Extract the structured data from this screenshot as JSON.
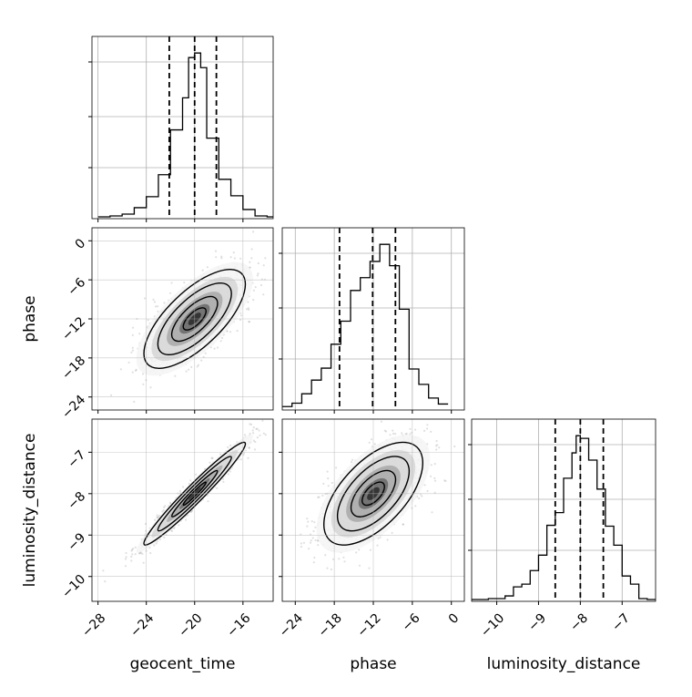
{
  "chart_data": {
    "type": "corner",
    "parameters": [
      "geocent_time",
      "phase",
      "luminosity_distance"
    ],
    "axis_labels": {
      "bottom": [
        "geocent_time",
        "phase",
        "luminosity_distance"
      ],
      "left": [
        "phase",
        "luminosity_distance"
      ]
    },
    "ranges": {
      "geocent_time": [
        -28.5,
        -13.5
      ],
      "phase": [
        -26.0,
        2.0
      ],
      "luminosity_distance": [
        -10.6,
        -6.2
      ]
    },
    "ticks": {
      "geocent_time": {
        "values": [
          -28,
          -24,
          -20,
          -16
        ],
        "labels": [
          "−28",
          "−24",
          "−20",
          "−16"
        ]
      },
      "phase": {
        "values": [
          -24,
          -18,
          -12,
          -6,
          0
        ],
        "labels": [
          "−24",
          "−18",
          "−12",
          "−6",
          "0"
        ]
      },
      "luminosity_distance": {
        "values": [
          -10,
          -9,
          -8,
          -7
        ],
        "labels": [
          "−10",
          "−9",
          "−8",
          "−7"
        ]
      }
    },
    "quantiles": {
      "geocent_time": [
        -22.1,
        -20.0,
        -18.2
      ],
      "phase": [
        -17.2,
        -12.1,
        -8.6
      ],
      "luminosity_distance": [
        -8.6,
        -8.0,
        -7.45
      ]
    },
    "histograms": {
      "geocent_time": {
        "bin_edges": [
          -28.0,
          -27.0,
          -26.0,
          -25.0,
          -24.0,
          -23.0,
          -22.0,
          -21.0,
          -20.5,
          -20.0,
          -19.5,
          -19.0,
          -18.0,
          -17.0,
          -16.0,
          -15.0,
          -14.0,
          -13.5
        ],
        "counts": [
          2,
          3,
          5,
          12,
          24,
          48,
          97,
          132,
          176,
          181,
          165,
          88,
          43,
          25,
          10,
          3,
          2
        ]
      },
      "phase": {
        "bin_edges": [
          -26.0,
          -24.5,
          -23.0,
          -21.5,
          -20.0,
          -18.5,
          -17.0,
          -15.5,
          -14.0,
          -12.5,
          -11.0,
          -9.5,
          -8.0,
          -6.5,
          -5.0,
          -3.5,
          -2.0,
          -0.5
        ],
        "counts": [
          4,
          8,
          19,
          35,
          49,
          77,
          104,
          140,
          155,
          174,
          194,
          169,
          118,
          48,
          30,
          14,
          7
        ]
      },
      "luminosity_distance": {
        "bin_edges": [
          -10.6,
          -10.2,
          -9.8,
          -9.6,
          -9.4,
          -9.2,
          -9.0,
          -8.8,
          -8.6,
          -8.4,
          -8.2,
          -8.1,
          -8.0,
          -7.8,
          -7.6,
          -7.4,
          -7.2,
          -7.0,
          -6.8,
          -6.6,
          -6.4,
          -6.2
        ],
        "counts": [
          2,
          3,
          6,
          16,
          19,
          34,
          51,
          84,
          98,
          136,
          164,
          183,
          180,
          156,
          124,
          83,
          62,
          28,
          19,
          3,
          2
        ]
      }
    },
    "scatter_2d": [
      {
        "x": "geocent_time",
        "y": "phase",
        "n_points": 1400,
        "center": [
          -20.0,
          -12.0
        ],
        "sigma": [
          2.1,
          3.8
        ],
        "correlation": 0.7,
        "levels_1sigma": 0.25,
        "levels_2sigma": 0.6,
        "levels_3sigma": 1.0
      },
      {
        "x": "geocent_time",
        "y": "luminosity_distance",
        "n_points": 1400,
        "center": [
          -20.0,
          -8.0
        ],
        "sigma": [
          2.1,
          0.62
        ],
        "correlation": 0.97,
        "levels_1sigma": 0.25,
        "levels_2sigma": 0.6,
        "levels_3sigma": 1.0
      },
      {
        "x": "phase",
        "y": "luminosity_distance",
        "n_points": 1400,
        "center": [
          -12.0,
          -8.0
        ],
        "sigma": [
          3.8,
          0.62
        ],
        "correlation": 0.6,
        "levels_1sigma": 0.25,
        "levels_2sigma": 0.6,
        "levels_3sigma": 1.0
      }
    ],
    "grid": true,
    "legend": "none",
    "colors": {
      "line": "#000000",
      "grid": "#b0b0b0",
      "points": "#555555",
      "frame": "#000000"
    }
  }
}
